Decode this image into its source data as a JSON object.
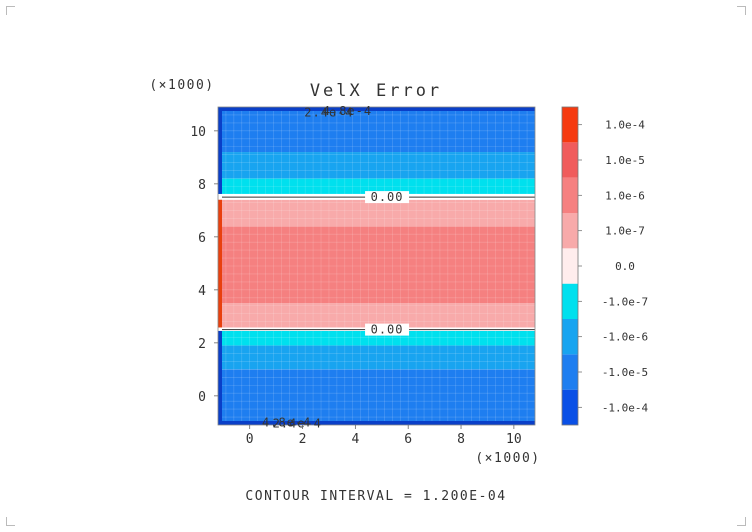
{
  "chart_data": {
    "type": "heatmap",
    "title": "VelX Error",
    "xlabel": "",
    "ylabel": "",
    "x_multiplier": "(×1000)",
    "y_multiplier": "(×1000)",
    "xlim": [
      -1.2,
      10.8
    ],
    "ylim": [
      -1.1,
      10.9
    ],
    "x_ticks": [
      "0",
      "2",
      "4",
      "6",
      "8",
      "10"
    ],
    "x_tick_values": [
      0,
      2,
      4,
      6,
      8,
      10
    ],
    "y_ticks": [
      "0",
      "2",
      "4",
      "6",
      "8",
      "10"
    ],
    "y_tick_values": [
      0,
      2,
      4,
      6,
      8,
      10
    ],
    "grid": true,
    "colorbar": {
      "levels": [
        {
          "color": "#0a50e6",
          "label": "-1.0e-4"
        },
        {
          "color": "#1e7ef0",
          "label": "-1.0e-5"
        },
        {
          "color": "#18a4f0",
          "label": "-1.0e-6"
        },
        {
          "color": "#00e0ee",
          "label": "-1.0e-7"
        },
        {
          "color": "#ffeded",
          "label": "0.0"
        },
        {
          "color": "#f8aaaa",
          "label": "1.0e-7"
        },
        {
          "color": "#f58080",
          "label": "1.0e-6"
        },
        {
          "color": "#f05c5c",
          "label": "1.0e-5"
        },
        {
          "color": "#f53a10",
          "label": "1.0e-4"
        }
      ]
    },
    "bands": [
      {
        "y0": -1.1,
        "y1": 1.0,
        "color": "#1e7ef0"
      },
      {
        "y0": 1.0,
        "y1": 1.9,
        "color": "#18a4f0"
      },
      {
        "y0": 1.9,
        "y1": 2.45,
        "color": "#00e0ee"
      },
      {
        "y0": 2.45,
        "y1": 2.58,
        "color": "#ffffff"
      },
      {
        "y0": 2.58,
        "y1": 3.5,
        "color": "#f8aaaa"
      },
      {
        "y0": 3.5,
        "y1": 6.4,
        "color": "#f58080"
      },
      {
        "y0": 6.4,
        "y1": 7.4,
        "color": "#f8aaaa"
      },
      {
        "y0": 7.4,
        "y1": 7.62,
        "color": "#ffffff"
      },
      {
        "y0": 7.62,
        "y1": 8.2,
        "color": "#00e0ee"
      },
      {
        "y0": 8.2,
        "y1": 9.2,
        "color": "#18a4f0"
      },
      {
        "y0": 9.2,
        "y1": 10.9,
        "color": "#1e7ef0"
      }
    ],
    "contour_labels": [
      {
        "text": "0.00",
        "x": 5.2,
        "y": 7.5
      },
      {
        "text": "0.00",
        "x": 5.2,
        "y": 2.5
      },
      {
        "text": "2.4e-4",
        "x": 3.0,
        "y": 10.7
      },
      {
        "text": "4.8e-4",
        "x": 3.7,
        "y": 10.75
      },
      {
        "text": "4.8e-4",
        "x": 1.4,
        "y": -1.0
      },
      {
        "text": "2.4e-4",
        "x": 1.8,
        "y": -1.05
      }
    ]
  },
  "footer": "CONTOUR INTERVAL = 1.200E-04"
}
